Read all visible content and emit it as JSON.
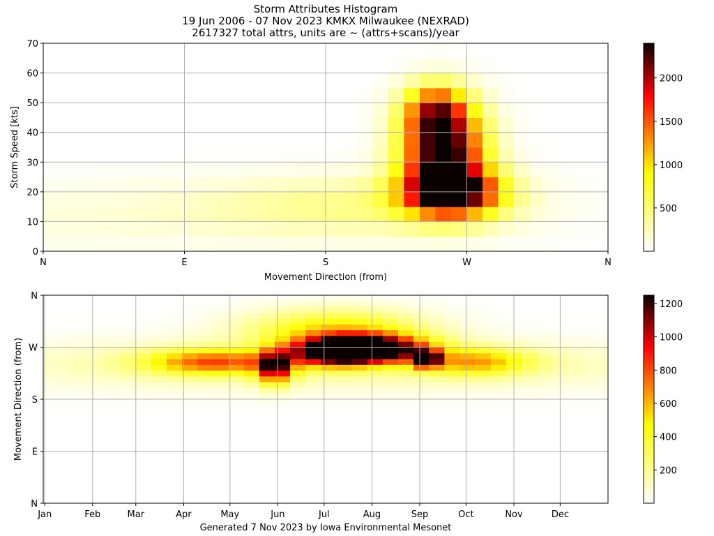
{
  "title": {
    "line1": "Storm Attributes Histogram",
    "line2": "19 Jun 2006 - 07 Nov 2023 KMKX Milwaukee (NEXRAD)",
    "line3": "2617327 total attrs, units are ~ (attrs+scans)/year"
  },
  "footer": "Generated 7 Nov 2023 by Iowa Environmental Mesonet",
  "colors": {
    "colormap": "hot_r",
    "grid": "#b0b0b0"
  },
  "chart_data": [
    {
      "type": "heatmap",
      "xlabel": "Movement Direction (from)",
      "ylabel": "Storm Speed [kts]",
      "x_ticks": [
        "N",
        "E",
        "S",
        "W",
        "N"
      ],
      "x_tick_values": [
        0,
        90,
        180,
        270,
        360
      ],
      "xlim": [
        0,
        360
      ],
      "ylim": [
        0,
        70
      ],
      "y_ticks": [
        0,
        10,
        20,
        30,
        40,
        50,
        60,
        70
      ],
      "x_bin_deg": 10,
      "y_bin_kts": 5,
      "colorbar": {
        "min": 0,
        "max": 2400,
        "ticks": [
          500,
          1000,
          1500,
          2000
        ]
      },
      "grid": true,
      "hotspots": [
        {
          "direction_deg": 255,
          "speed_kts": 35,
          "value": 2400,
          "dir_spread_deg": 18,
          "speed_spread_kts": 10
        },
        {
          "direction_deg": 260,
          "speed_kts": 20,
          "value": 2300,
          "dir_spread_deg": 22,
          "speed_spread_kts": 6
        },
        {
          "direction_deg": 250,
          "speed_kts": 48,
          "value": 1200,
          "dir_spread_deg": 14,
          "speed_spread_kts": 6
        },
        {
          "direction_deg": 200,
          "speed_kts": 15,
          "value": 400,
          "dir_spread_deg": 70,
          "speed_spread_kts": 7
        },
        {
          "direction_deg": 30,
          "speed_kts": 12,
          "value": 120,
          "dir_spread_deg": 90,
          "speed_spread_kts": 8
        }
      ]
    },
    {
      "type": "heatmap",
      "xlabel": "",
      "ylabel": "Movement Direction (from)",
      "x_ticks": [
        "Jan",
        "Feb",
        "Mar",
        "Apr",
        "May",
        "Jun",
        "Jul",
        "Aug",
        "Sep",
        "Oct",
        "Nov",
        "Dec"
      ],
      "x_tick_values": [
        1,
        32,
        60,
        91,
        121,
        152,
        182,
        213,
        244,
        274,
        305,
        335
      ],
      "xlim": [
        0,
        366
      ],
      "y_ticks": [
        "N",
        "E",
        "S",
        "W",
        "N"
      ],
      "y_tick_values": [
        0,
        90,
        180,
        270,
        360
      ],
      "ylim": [
        0,
        360
      ],
      "x_bin_days": 10,
      "y_bin_deg": 10,
      "colorbar": {
        "min": 0,
        "max": 1250,
        "ticks": [
          200,
          400,
          600,
          800,
          1000,
          1200
        ]
      },
      "grid": true,
      "hotspots": [
        {
          "day": 213,
          "direction_deg": 268,
          "value": 1250,
          "day_spread": 25,
          "dir_spread_deg": 16
        },
        {
          "day": 190,
          "direction_deg": 262,
          "value": 1100,
          "day_spread": 20,
          "dir_spread_deg": 16
        },
        {
          "day": 248,
          "direction_deg": 250,
          "value": 1150,
          "day_spread": 6,
          "dir_spread_deg": 10
        },
        {
          "day": 150,
          "direction_deg": 235,
          "value": 900,
          "day_spread": 8,
          "dir_spread_deg": 20
        },
        {
          "day": 110,
          "direction_deg": 245,
          "value": 650,
          "day_spread": 30,
          "dir_spread_deg": 15
        },
        {
          "day": 280,
          "direction_deg": 245,
          "value": 500,
          "day_spread": 25,
          "dir_spread_deg": 16
        },
        {
          "day": 190,
          "direction_deg": 300,
          "value": 500,
          "day_spread": 40,
          "dir_spread_deg": 25
        },
        {
          "day": 183,
          "direction_deg": 240,
          "value": 200,
          "day_spread": 160,
          "dir_spread_deg": 30
        }
      ]
    }
  ]
}
